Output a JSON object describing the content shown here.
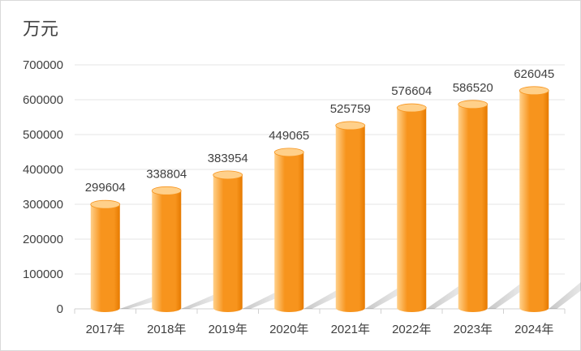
{
  "chart_data": {
    "type": "bar",
    "title": "",
    "ylabel": "万元",
    "xlabel": "",
    "categories": [
      "2017年",
      "2018年",
      "2019年",
      "2020年",
      "2021年",
      "2022年",
      "2023年",
      "2024年"
    ],
    "values": [
      299604,
      338804,
      383954,
      449065,
      525759,
      576604,
      586520,
      626045
    ],
    "data_labels": [
      "299604",
      "338804",
      "383954",
      "449065",
      "525759",
      "576604",
      "586520",
      "626045"
    ],
    "yticks": [
      "0",
      "100000",
      "200000",
      "300000",
      "400000",
      "500000",
      "600000",
      "700000"
    ],
    "ylim": [
      0,
      700000
    ],
    "grid": true,
    "legend": "none",
    "bar_style": "3d-cylinder",
    "colors": {
      "bar": "#F7941D",
      "bar_light": "#FFD08A",
      "bar_dark": "#E67A00",
      "grid": "#E6E6E6",
      "axis": "#D0D0D0",
      "text": "#404040"
    }
  }
}
